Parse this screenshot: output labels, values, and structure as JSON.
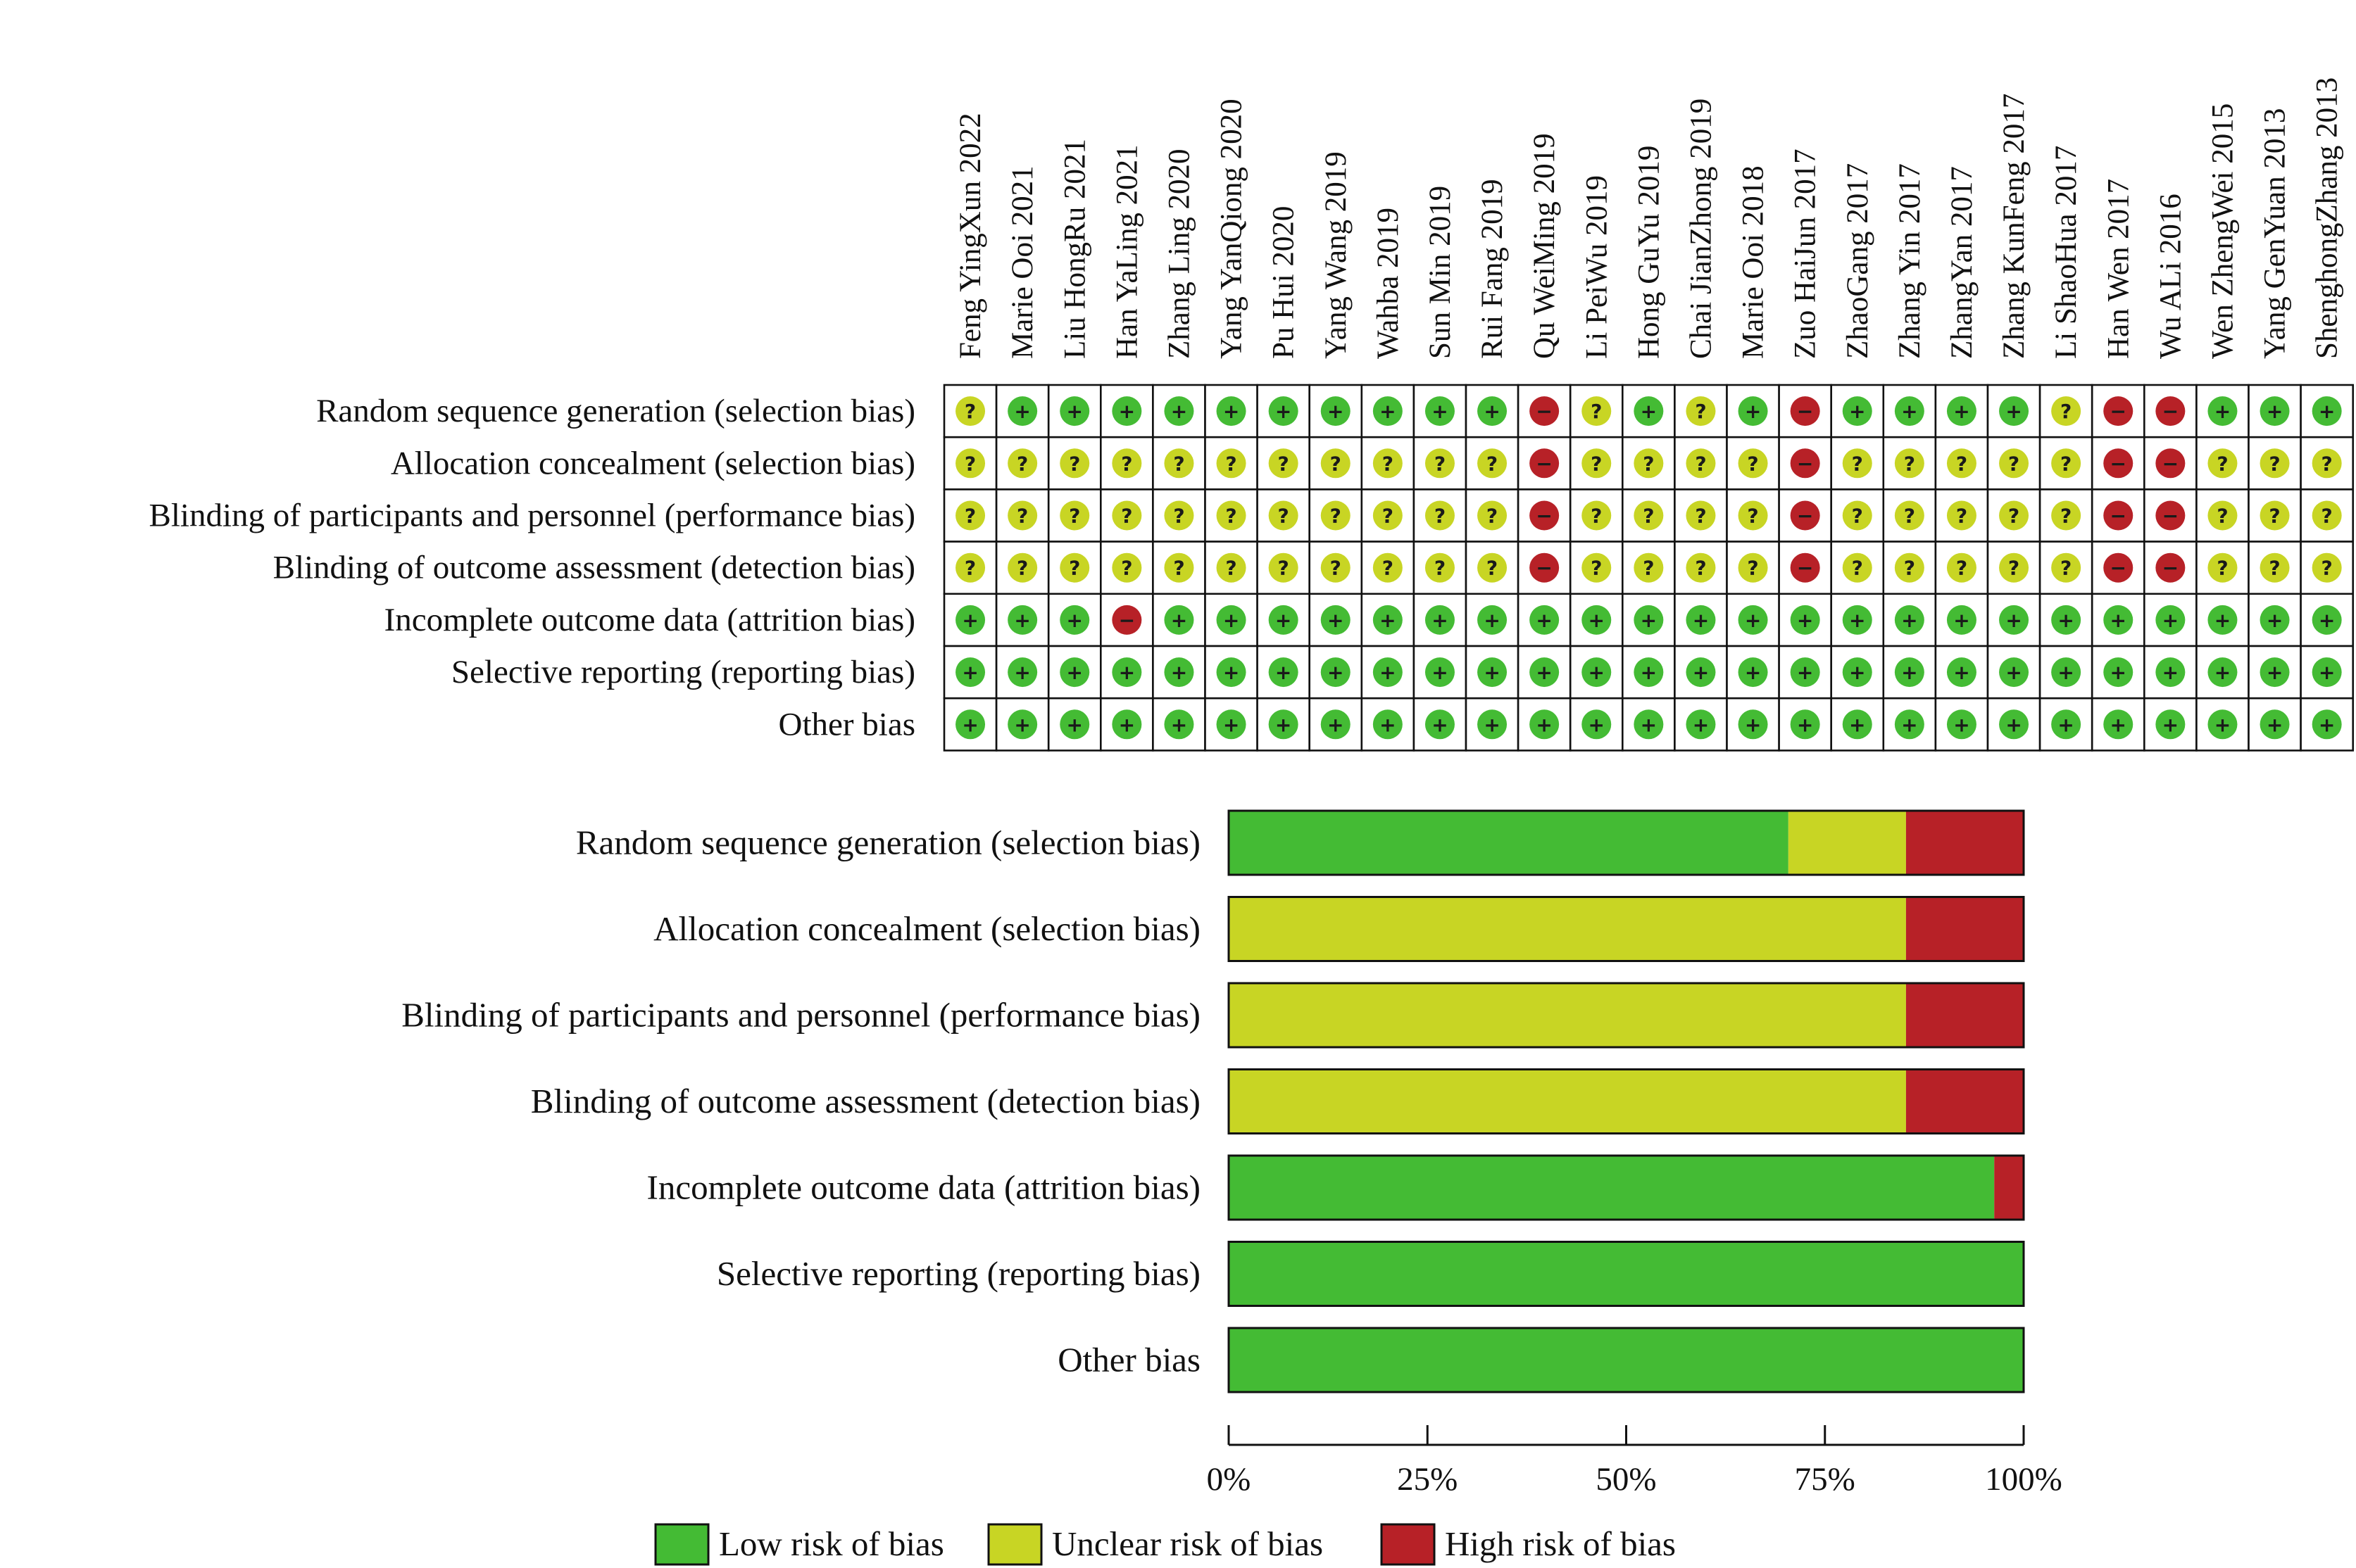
{
  "colors": {
    "low": "#44bb34",
    "unclear": "#c8d524",
    "high": "#b72127",
    "border": "#111111"
  },
  "symbols": {
    "low": "+",
    "unclear": "?",
    "high": "−"
  },
  "chart_data": [
    {
      "type": "table",
      "studies": [
        "Feng YingXun 2022",
        "Marie Ooi 2021",
        "Liu HongRu 2021",
        "Han YaLing 2021",
        "Zhang Ling 2020",
        "Yang YanQiong 2020",
        "Pu Hui 2020",
        "Yang Wang 2019",
        "Wahba 2019",
        "Sun Min 2019",
        "Rui Fang 2019",
        "Qu WeiMing 2019",
        "Li PeiWu 2019",
        "Hong GuYu 2019",
        "Chai JianZhong 2019",
        "Marie Ooi 2018",
        "Zuo HaiJun 2017",
        "ZhaoGang 2017",
        "Zhang Yin 2017",
        "ZhangYan 2017",
        "Zhang KunFeng 2017",
        "Li ShaoHua 2017",
        "Han Wen 2017",
        "Wu ALi 2016",
        "Wen ZhengWei 2015",
        "Yang GenYuan 2013",
        "ShenghongZhang 2013"
      ],
      "domains": [
        "Random sequence generation (selection bias)",
        "Allocation concealment (selection bias)",
        "Blinding of participants and personnel (performance bias)",
        "Blinding of outcome assessment (detection bias)",
        "Incomplete outcome data (attrition bias)",
        "Selective reporting (reporting bias)",
        "Other bias"
      ],
      "judgements": [
        [
          "unclear",
          "low",
          "low",
          "low",
          "low",
          "low",
          "low",
          "low",
          "low",
          "low",
          "low",
          "high",
          "unclear",
          "low",
          "unclear",
          "low",
          "high",
          "low",
          "low",
          "low",
          "low",
          "unclear",
          "high",
          "high",
          "low",
          "low",
          "low"
        ],
        [
          "unclear",
          "unclear",
          "unclear",
          "unclear",
          "unclear",
          "unclear",
          "unclear",
          "unclear",
          "unclear",
          "unclear",
          "unclear",
          "high",
          "unclear",
          "unclear",
          "unclear",
          "unclear",
          "high",
          "unclear",
          "unclear",
          "unclear",
          "unclear",
          "unclear",
          "high",
          "high",
          "unclear",
          "unclear",
          "unclear"
        ],
        [
          "unclear",
          "unclear",
          "unclear",
          "unclear",
          "unclear",
          "unclear",
          "unclear",
          "unclear",
          "unclear",
          "unclear",
          "unclear",
          "high",
          "unclear",
          "unclear",
          "unclear",
          "unclear",
          "high",
          "unclear",
          "unclear",
          "unclear",
          "unclear",
          "unclear",
          "high",
          "high",
          "unclear",
          "unclear",
          "unclear"
        ],
        [
          "unclear",
          "unclear",
          "unclear",
          "unclear",
          "unclear",
          "unclear",
          "unclear",
          "unclear",
          "unclear",
          "unclear",
          "unclear",
          "high",
          "unclear",
          "unclear",
          "unclear",
          "unclear",
          "high",
          "unclear",
          "unclear",
          "unclear",
          "unclear",
          "unclear",
          "high",
          "high",
          "unclear",
          "unclear",
          "unclear"
        ],
        [
          "low",
          "low",
          "low",
          "high",
          "low",
          "low",
          "low",
          "low",
          "low",
          "low",
          "low",
          "low",
          "low",
          "low",
          "low",
          "low",
          "low",
          "low",
          "low",
          "low",
          "low",
          "low",
          "low",
          "low",
          "low",
          "low",
          "low"
        ],
        [
          "low",
          "low",
          "low",
          "low",
          "low",
          "low",
          "low",
          "low",
          "low",
          "low",
          "low",
          "low",
          "low",
          "low",
          "low",
          "low",
          "low",
          "low",
          "low",
          "low",
          "low",
          "low",
          "low",
          "low",
          "low",
          "low",
          "low"
        ],
        [
          "low",
          "low",
          "low",
          "low",
          "low",
          "low",
          "low",
          "low",
          "low",
          "low",
          "low",
          "low",
          "low",
          "low",
          "low",
          "low",
          "low",
          "low",
          "low",
          "low",
          "low",
          "low",
          "low",
          "low",
          "low",
          "low",
          "low"
        ]
      ]
    },
    {
      "type": "bar",
      "orientation": "horizontal",
      "stacked": true,
      "categories": [
        "Random sequence generation (selection bias)",
        "Allocation concealment (selection bias)",
        "Blinding of participants and personnel (performance bias)",
        "Blinding of outcome assessment (detection bias)",
        "Incomplete outcome data (attrition bias)",
        "Selective reporting (reporting bias)",
        "Other bias"
      ],
      "series": [
        {
          "name": "Low risk of bias",
          "key": "low",
          "values": [
            70.4,
            0,
            0,
            0,
            96.3,
            100,
            100
          ]
        },
        {
          "name": "Unclear risk of bias",
          "key": "unclear",
          "values": [
            14.8,
            85.2,
            85.2,
            85.2,
            0,
            0,
            0
          ]
        },
        {
          "name": "High risk of bias",
          "key": "high",
          "values": [
            14.8,
            14.8,
            14.8,
            14.8,
            3.7,
            0,
            0
          ]
        }
      ],
      "xlim": [
        0,
        100
      ],
      "xticks": [
        "0%",
        "25%",
        "50%",
        "75%",
        "100%"
      ],
      "legend": "bottom"
    }
  ]
}
